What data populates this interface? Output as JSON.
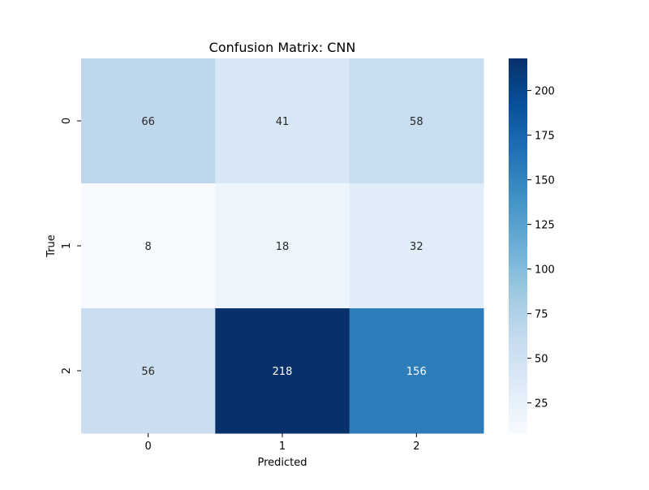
{
  "chart_data": {
    "type": "heatmap",
    "title": "Confusion Matrix: CNN",
    "xlabel": "Predicted",
    "ylabel": "True",
    "x_categories": [
      "0",
      "1",
      "2"
    ],
    "y_categories": [
      "0",
      "1",
      "2"
    ],
    "values": [
      [
        66,
        41,
        58
      ],
      [
        8,
        18,
        32
      ],
      [
        56,
        218,
        156
      ]
    ],
    "colormap": "Blues",
    "color_range": [
      8,
      218
    ],
    "colorbar": {
      "ticks": [
        25,
        50,
        75,
        100,
        125,
        150,
        175,
        200
      ],
      "labels": [
        "25",
        "50",
        "75",
        "100",
        "125",
        "150",
        "175",
        "200"
      ]
    }
  }
}
